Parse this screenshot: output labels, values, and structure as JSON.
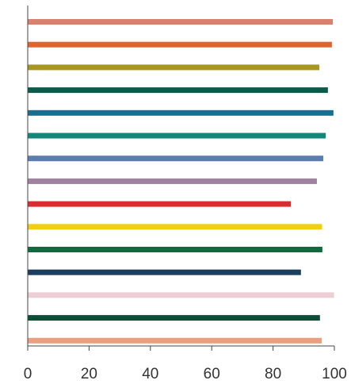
{
  "chart_data": {
    "type": "bar",
    "orientation": "horizontal",
    "title": "",
    "xlabel": "",
    "ylabel": "",
    "xlim": [
      0,
      100
    ],
    "x_ticks": [
      "0",
      "20",
      "40",
      "60",
      "80",
      "100"
    ],
    "grid": false,
    "legend": "none",
    "categories": [
      "",
      "",
      "",
      "",
      "",
      "",
      "",
      "",
      "",
      "",
      "",
      "",
      "",
      "",
      ""
    ],
    "values": [
      99.5,
      99.2,
      95.1,
      97.9,
      99.7,
      97.2,
      96.4,
      94.3,
      85.8,
      96.0,
      96.1,
      89.1,
      99.9,
      95.3,
      95.9
    ],
    "colors": [
      "#d9806f",
      "#e0642f",
      "#a8961e",
      "#0d5a4a",
      "#13708e",
      "#14877a",
      "#5b7daf",
      "#a0819f",
      "#dc2a2f",
      "#efcf10",
      "#0f6a3e",
      "#1d3f5e",
      "#ecced6",
      "#0d4d36",
      "#eb9f7f"
    ]
  }
}
